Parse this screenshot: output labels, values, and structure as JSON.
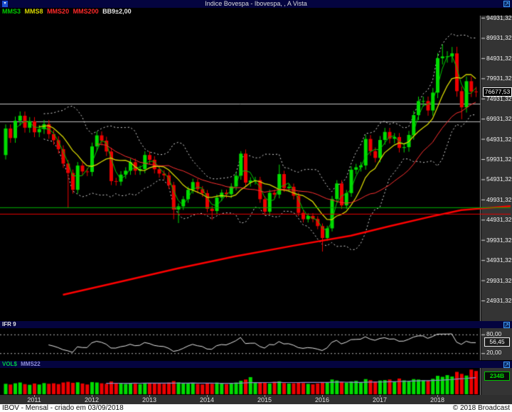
{
  "window": {
    "title": "Indice Bovespa - Ibovespa, , A Vista",
    "status_left": "IBOV - Mensal - criado em 03/09/2018",
    "status_right": "© 2018 Broadcast"
  },
  "legend": {
    "items": [
      {
        "label": "MMS3",
        "color": "#00cc00"
      },
      {
        "label": "MMS8",
        "color": "#d8d800"
      },
      {
        "label": "MMS20",
        "color": "#ff2a2a"
      },
      {
        "label": "MMS200",
        "color": "#ff2a2a"
      },
      {
        "label": "BB9±2,00",
        "color": "#e4e4e4"
      }
    ]
  },
  "main_chart": {
    "last_price_label": "76677,53",
    "y_tick_labels": [
      "94931,32",
      "89931,32",
      "84931,32",
      "79931,32",
      "74931,32",
      "69931,32",
      "64931,32",
      "59931,32",
      "54931,32",
      "49931,32",
      "44931,32",
      "39931,32",
      "34931,32",
      "29931,32",
      "24931,32"
    ]
  },
  "ifr_panel": {
    "title": "IFR 9",
    "upper_label": "80,00",
    "value_label": "56,45",
    "lower_label": "20,00"
  },
  "vol_panel": {
    "title": "VOL$",
    "ma_label": "MMS22",
    "value_label": "234B"
  },
  "x_axis": {
    "year_labels": [
      "2011",
      "2012",
      "2013",
      "2014",
      "2015",
      "2016",
      "2017",
      "2018"
    ]
  },
  "chart_data": {
    "type": "candlestick",
    "title": "Indice Bovespa - Ibovespa, , A Vista",
    "timeframe": "Mensal",
    "first_month": "2010-07",
    "last_month": "2018-09",
    "last_price": 76677.53,
    "open_first": 60936,
    "closes": [
      67515,
      65145,
      69430,
      70673,
      67705,
      69305,
      66575,
      67383,
      68587,
      66133,
      64620,
      62404,
      58823,
      56495,
      52324,
      58338,
      56875,
      56754,
      63072,
      65812,
      64511,
      61820,
      54490,
      54355,
      56097,
      57061,
      59176,
      57068,
      57475,
      60952,
      59761,
      57424,
      56352,
      55910,
      53506,
      47457,
      48234,
      50011,
      52338,
      54256,
      52482,
      51507,
      47639,
      47094,
      50415,
      51627,
      51240,
      53168,
      55829,
      61288,
      54116,
      54629,
      54724,
      50007,
      46908,
      51583,
      51150,
      56229,
      52760,
      53081,
      50865,
      46626,
      45059,
      45869,
      45120,
      43350,
      40406,
      42794,
      50055,
      53911,
      48472,
      51527,
      57308,
      57901,
      58367,
      64925,
      61906,
      60227,
      64671,
      66662,
      64984,
      65403,
      62711,
      62900,
      65920,
      70835,
      74294,
      74308,
      71971,
      76402,
      84913,
      85354,
      85366,
      86116,
      76754,
      72763,
      79220,
      76678,
      76677.53
    ],
    "high_overrides": {
      "49": 61896,
      "50": 62305,
      "57": 58575,
      "91": 88318,
      "93": 87693,
      "94": 87746
    },
    "low_overrides": {
      "13": 47793,
      "35": 45044,
      "36": 44107,
      "43": 44904,
      "66": 37046,
      "95": 69815
    },
    "volumes_billions": [
      105,
      98,
      110,
      118,
      102,
      95,
      108,
      98,
      112,
      105,
      110,
      102,
      118,
      125,
      115,
      120,
      108,
      98,
      122,
      118,
      110,
      105,
      128,
      112,
      108,
      104,
      110,
      106,
      102,
      112,
      115,
      108,
      112,
      105,
      118,
      132,
      120,
      110,
      108,
      115,
      104,
      98,
      112,
      105,
      118,
      108,
      102,
      110,
      118,
      135,
      148,
      172,
      120,
      115,
      118,
      108,
      125,
      130,
      112,
      108,
      110,
      118,
      112,
      105,
      100,
      108,
      122,
      115,
      148,
      138,
      125,
      118,
      128,
      135,
      122,
      152,
      142,
      128,
      138,
      142,
      148,
      128,
      158,
      140,
      135,
      152,
      148,
      142,
      138,
      155,
      185,
      175,
      192,
      178,
      225,
      205,
      188,
      248,
      234
    ],
    "y_axis": {
      "tick_values": [
        94931.32,
        89931.32,
        84931.32,
        79931.32,
        74931.32,
        69931.32,
        64931.32,
        59931.32,
        54931.32,
        49931.32,
        44931.32,
        39931.32,
        34931.32,
        29931.32,
        24931.32
      ]
    },
    "x_tick_years": [
      2011,
      2012,
      2013,
      2014,
      2015,
      2016,
      2017,
      2018
    ],
    "overlays": {
      "moving_averages": [
        {
          "name": "MMS3",
          "period": 3,
          "color": "#00cc00"
        },
        {
          "name": "MMS8",
          "period": 8,
          "color": "#d8d800"
        },
        {
          "name": "MMS20",
          "period": 20,
          "color": "#ff3030"
        }
      ],
      "mms200": {
        "name": "MMS200",
        "color": "#ff0000",
        "anchors": [
          [
            12,
            26350
          ],
          [
            24,
            29600
          ],
          [
            36,
            32900
          ],
          [
            48,
            35900
          ],
          [
            60,
            38500
          ],
          [
            72,
            41000
          ],
          [
            80,
            43300
          ],
          [
            89,
            45800
          ],
          [
            95,
            47300
          ],
          [
            98,
            47600
          ],
          [
            106,
            48300
          ]
        ]
      },
      "bollinger": {
        "period": 9,
        "mult": 2,
        "color": "#dcdcdc"
      },
      "hlines": [
        {
          "price": 73660,
          "color": "#c8c8c8",
          "full": false
        },
        {
          "price": 69270,
          "color": "#c8c8c8",
          "full": false
        },
        {
          "price": 48000,
          "color": "#00b400",
          "full": true
        },
        {
          "price": 46400,
          "color": "#e80000",
          "full": true
        }
      ]
    },
    "rsi": {
      "period": 9,
      "guides": [
        80,
        20
      ],
      "last_value": 56.45
    },
    "volume_ma_period": 22,
    "candle_up_color": "#00dd00",
    "candle_down_color": "#ee0000"
  }
}
